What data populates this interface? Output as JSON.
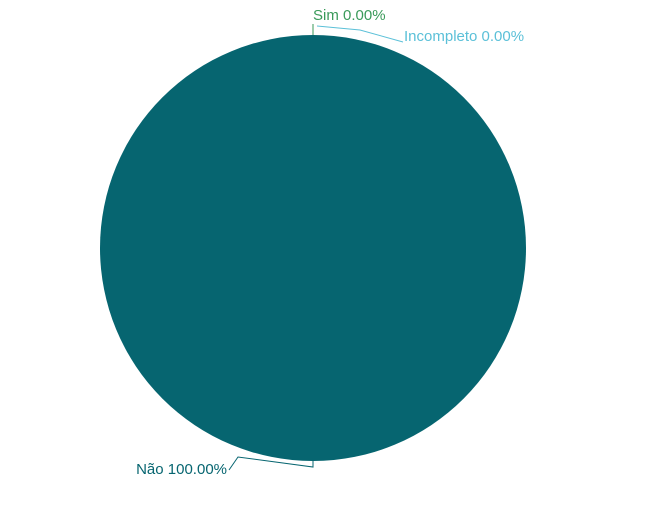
{
  "chart_data": {
    "type": "pie",
    "title": "",
    "slices": [
      {
        "label": "Sim",
        "value": 0.0,
        "percent_label": "0.00%",
        "color": "#3a9a5a"
      },
      {
        "label": "Incompleto",
        "value": 0.0,
        "percent_label": "0.00%",
        "color": "#5bc0d8"
      },
      {
        "label": "Não",
        "value": 100.0,
        "percent_label": "100.00%",
        "color": "#066570"
      }
    ],
    "legend": "none"
  }
}
